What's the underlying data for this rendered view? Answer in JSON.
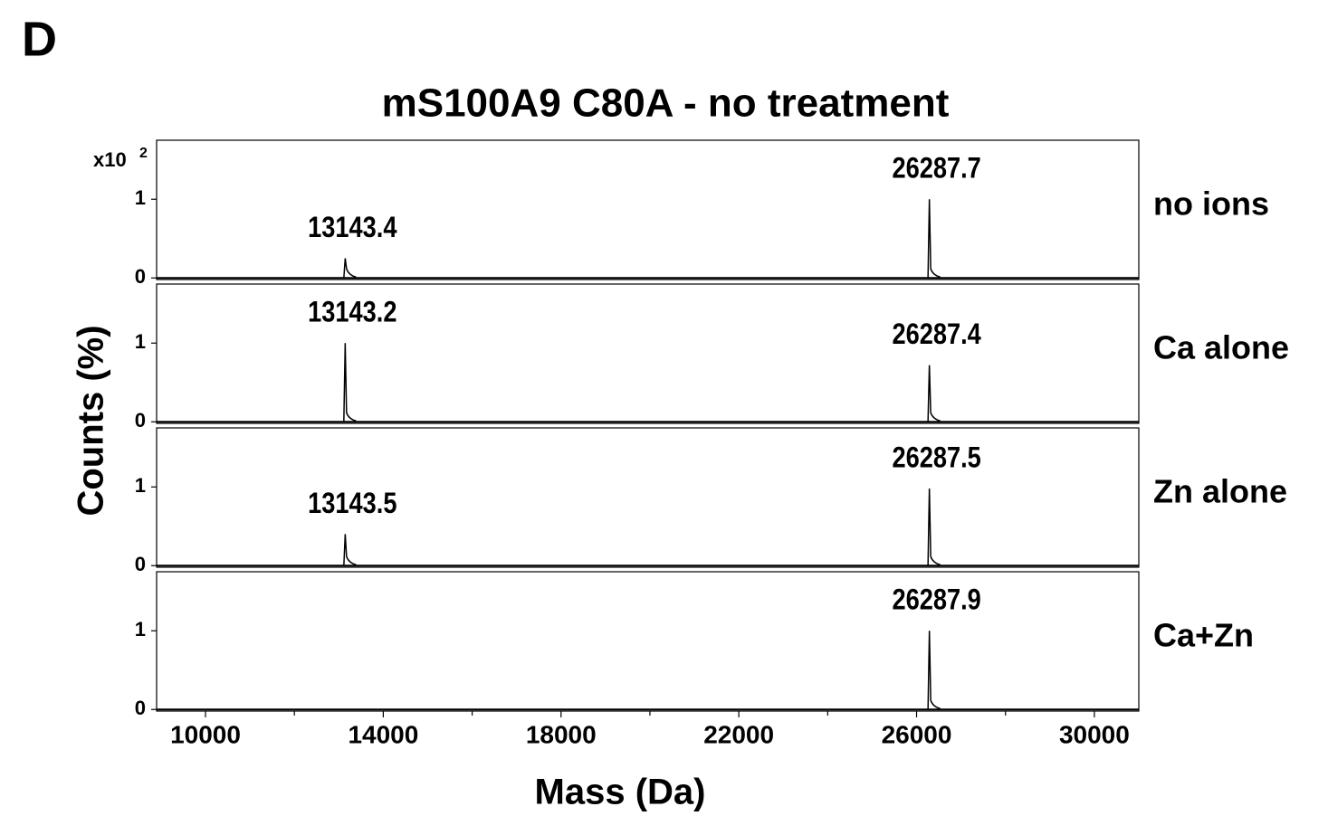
{
  "figure": {
    "panel_label": "D",
    "title": "mS100A9 C80A - no treatment",
    "y_label": "Counts (%)",
    "y_multiplier": "x10",
    "y_multiplier_exponent": "2",
    "x_label": "Mass (Da)",
    "xlim": [
      8900,
      31000
    ],
    "xticks": [
      10000,
      14000,
      18000,
      22000,
      26000,
      30000
    ],
    "xminor_ticks": [
      12000,
      16000,
      20000,
      24000,
      28000
    ]
  },
  "chart_data": [
    {
      "type": "spectrum",
      "name": "no ions",
      "ylim": [
        -0.02,
        1.75
      ],
      "yticks": [
        0,
        1
      ],
      "peaks": [
        {
          "x": 13143.4,
          "value": 0.25
        },
        {
          "x": 26287.7,
          "value": 1.0
        }
      ]
    },
    {
      "type": "spectrum",
      "name": "Ca alone",
      "ylim": [
        -0.02,
        1.75
      ],
      "yticks": [
        0,
        1
      ],
      "peaks": [
        {
          "x": 13143.2,
          "value": 1.0
        },
        {
          "x": 26287.4,
          "value": 0.72
        }
      ]
    },
    {
      "type": "spectrum",
      "name": "Zn alone",
      "ylim": [
        -0.02,
        1.75
      ],
      "yticks": [
        0,
        1
      ],
      "peaks": [
        {
          "x": 13143.5,
          "value": 0.4
        },
        {
          "x": 26287.5,
          "value": 0.98
        }
      ]
    },
    {
      "type": "spectrum",
      "name": "Ca+Zn",
      "ylim": [
        -0.02,
        1.75
      ],
      "yticks": [
        0,
        1
      ],
      "peaks": [
        {
          "x": 26287.9,
          "value": 1.0
        }
      ]
    }
  ]
}
